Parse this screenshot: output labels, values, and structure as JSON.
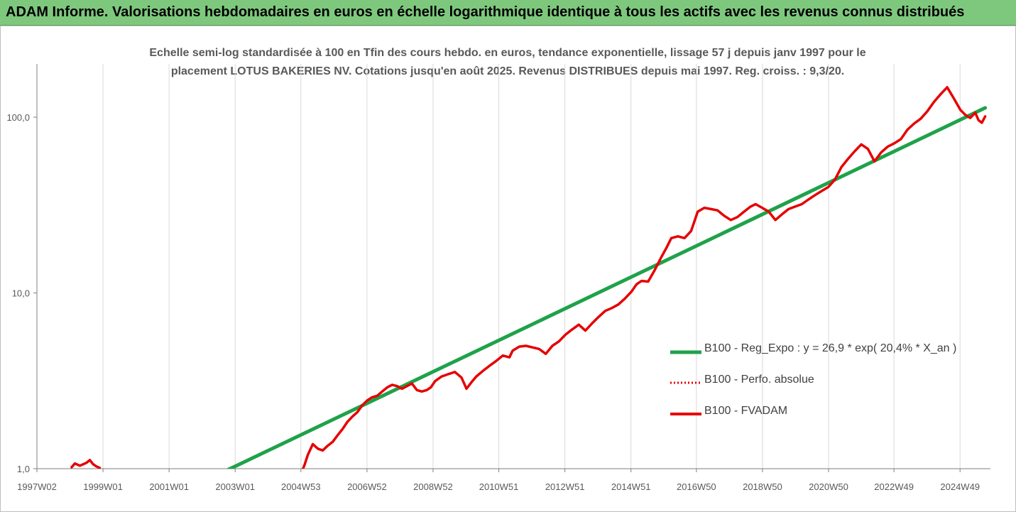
{
  "header": {
    "title": "ADAM Informe. Valorisations hebdomadaires en euros en échelle logarithmique identique à tous les actifs avec les revenus connus distribués"
  },
  "chart_data": {
    "type": "line",
    "title_line1": "Echelle semi-log standardisée à 100 en Tfin des cours hebdo. en euros, tendance exponentielle, lissage 57 j depuis janv 1997 pour le",
    "title_line2": "placement LOTUS BAKERIES NV. Cotations jusqu'en août 2025. Revenus DISTRIBUES depuis mai 1997. Reg. croiss. : 9,3/20.",
    "y_scale": "log",
    "ylim": [
      1,
      200
    ],
    "y_ticks": [
      {
        "value": 1,
        "label": "1,0"
      },
      {
        "value": 10,
        "label": "10,0"
      },
      {
        "value": 100,
        "label": "100,0"
      }
    ],
    "xlim": [
      1997.0,
      2025.75
    ],
    "x_ticks": [
      {
        "value": 1997.0,
        "label": "1997W02"
      },
      {
        "value": 1999.0,
        "label": "1999W01"
      },
      {
        "value": 2001.0,
        "label": "2001W01"
      },
      {
        "value": 2003.0,
        "label": "2003W01"
      },
      {
        "value": 2004.99,
        "label": "2004W53"
      },
      {
        "value": 2006.99,
        "label": "2006W52"
      },
      {
        "value": 2008.99,
        "label": "2008W52"
      },
      {
        "value": 2010.98,
        "label": "2010W51"
      },
      {
        "value": 2012.98,
        "label": "2012W51"
      },
      {
        "value": 2014.98,
        "label": "2014W51"
      },
      {
        "value": 2016.96,
        "label": "2016W50"
      },
      {
        "value": 2018.96,
        "label": "2018W50"
      },
      {
        "value": 2020.96,
        "label": "2020W50"
      },
      {
        "value": 2022.94,
        "label": "2022W49"
      },
      {
        "value": 2024.94,
        "label": "2024W49"
      }
    ],
    "grid": "vertical",
    "legend_position": "right",
    "series": [
      {
        "name": "B100 - Reg_Expo : y = 26,9 * exp( 20,4% *  X_an )",
        "color": "#1fa24a",
        "style": "solid",
        "x": [
          2002.5,
          2025.7
        ],
        "y": [
          0.93,
          113
        ]
      },
      {
        "name": "B100 - Perfo. absolue",
        "color": "#e60000",
        "style": "dotted",
        "x": [],
        "y": []
      },
      {
        "name": "B100 - FVADAM",
        "color": "#e60000",
        "style": "solid",
        "segments": [
          {
            "x": [
              1998.05,
              1998.15,
              1998.3,
              1998.5,
              1998.6,
              1998.7,
              1998.8,
              1998.9
            ],
            "y": [
              1.02,
              1.07,
              1.04,
              1.08,
              1.12,
              1.06,
              1.03,
              1.01
            ]
          },
          {
            "x": [
              2004.95,
              2005.1,
              2005.2,
              2005.35,
              2005.5,
              2005.65,
              2005.8,
              2005.95,
              2006.1,
              2006.25,
              2006.4,
              2006.55,
              2006.7,
              2006.85,
              2007.0,
              2007.15,
              2007.3,
              2007.45,
              2007.6,
              2007.75,
              2007.9,
              2008.05,
              2008.2,
              2008.35,
              2008.5,
              2008.65,
              2008.8,
              2008.92,
              2009.05,
              2009.25,
              2009.45,
              2009.65,
              2009.85,
              2010.0,
              2010.15,
              2010.3,
              2010.5,
              2010.7,
              2010.9,
              2011.1,
              2011.3,
              2011.4,
              2011.6,
              2011.8,
              2012.0,
              2012.2,
              2012.4,
              2012.6,
              2012.8,
              2013.0,
              2013.2,
              2013.4,
              2013.6,
              2013.8,
              2014.0,
              2014.2,
              2014.4,
              2014.6,
              2014.8,
              2015.0,
              2015.15,
              2015.3,
              2015.5,
              2015.7,
              2015.9,
              2016.05,
              2016.2,
              2016.4,
              2016.6,
              2016.8,
              2017.0,
              2017.2,
              2017.4,
              2017.6,
              2017.8,
              2018.0,
              2018.2,
              2018.4,
              2018.6,
              2018.75,
              2018.95,
              2019.15,
              2019.35,
              2019.55,
              2019.75,
              2019.95,
              2020.15,
              2020.35,
              2020.55,
              2020.75,
              2020.95,
              2021.15,
              2021.35,
              2021.55,
              2021.75,
              2021.95,
              2022.15,
              2022.35,
              2022.55,
              2022.75,
              2022.95,
              2023.15,
              2023.35,
              2023.55,
              2023.75,
              2023.95,
              2024.15,
              2024.35,
              2024.55,
              2024.75,
              2024.95,
              2025.1,
              2025.25,
              2025.4,
              2025.5,
              2025.6,
              2025.7
            ],
            "y": [
              0.9,
              1.05,
              1.2,
              1.38,
              1.3,
              1.27,
              1.35,
              1.42,
              1.55,
              1.68,
              1.85,
              1.98,
              2.1,
              2.3,
              2.45,
              2.55,
              2.6,
              2.75,
              2.9,
              3.0,
              2.95,
              2.85,
              2.95,
              3.05,
              2.8,
              2.75,
              2.8,
              2.9,
              3.15,
              3.35,
              3.45,
              3.55,
              3.3,
              2.85,
              3.1,
              3.35,
              3.6,
              3.85,
              4.1,
              4.4,
              4.3,
              4.7,
              4.95,
              5.0,
              4.9,
              4.8,
              4.5,
              5.0,
              5.3,
              5.8,
              6.2,
              6.6,
              6.1,
              6.7,
              7.3,
              7.9,
              8.2,
              8.6,
              9.3,
              10.2,
              11.2,
              11.7,
              11.6,
              13.5,
              16.0,
              18.0,
              20.5,
              21.0,
              20.5,
              22.5,
              29.0,
              30.5,
              30.0,
              29.5,
              27.5,
              26.0,
              27.0,
              29.0,
              31.0,
              32.0,
              30.5,
              29.0,
              26.0,
              28.0,
              30.0,
              31.0,
              32.0,
              34.0,
              36.0,
              38.0,
              40.0,
              44.0,
              52.0,
              58.0,
              64.0,
              70.0,
              66.0,
              56.0,
              63.0,
              68.0,
              71.0,
              75.0,
              85.0,
              92.0,
              98.0,
              108.0,
              122.0,
              135.0,
              148.0,
              128.0,
              110.0,
              103.0,
              99.0,
              106.0,
              96.0,
              93.0,
              101.0
            ]
          }
        ]
      }
    ]
  }
}
